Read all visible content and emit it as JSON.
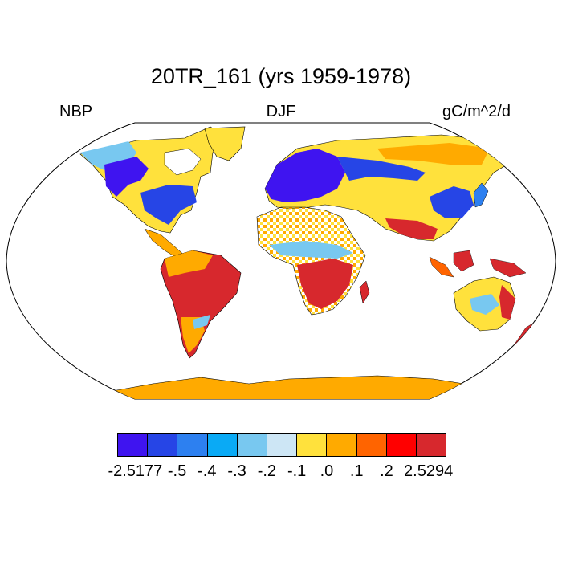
{
  "title": "20TR_161 (yrs 1959-1978)",
  "variable": "NBP",
  "season": "DJF",
  "units": "gC/m^2/d",
  "projection": "Robinson",
  "colorbar": {
    "labels": [
      "-2.5177",
      "-.5",
      "-.4",
      "-.3",
      "-.2",
      "-.1",
      ".0",
      ".1",
      ".2",
      "2.5294"
    ],
    "colors": [
      "#3f14f0",
      "#2645e6",
      "#2d80f0",
      "#0aaaf5",
      "#78c8f0",
      "#cde6f5",
      "#ffe13c",
      "#ffaa00",
      "#ff6400",
      "#ff0000",
      "#d7282d"
    ]
  }
}
